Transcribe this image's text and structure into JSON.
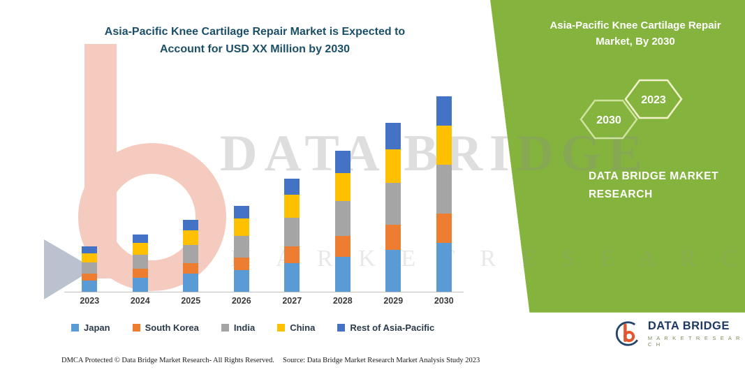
{
  "title": {
    "line1": "Asia-Pacific Knee Cartilage Repair Market is Expected to",
    "line2": "Account for USD XX Million by 2030"
  },
  "side_panel": {
    "heading": "Asia-Pacific Knee Cartilage Repair Market, By 2030",
    "hexagons": [
      {
        "label": "2030"
      },
      {
        "label": "2023"
      }
    ],
    "brand_line1": "DATA BRIDGE MARKET",
    "brand_line2": "RESEARCH",
    "bg_color": "#85B43E"
  },
  "watermark": {
    "line1": "DATA BRIDGE",
    "line2": "M A R K E T   R E S E A R C H"
  },
  "chart_data": {
    "type": "bar",
    "stacked": true,
    "title": "Asia-Pacific Knee Cartilage Repair Market is Expected to Account for USD XX Million by 2030",
    "xlabel": "",
    "ylabel": "",
    "value_note": "USD XX Million (exact values not shown; series values estimated from bar heights, relative units)",
    "grid": false,
    "legend_position": "bottom",
    "categories": [
      "2023",
      "2024",
      "2025",
      "2026",
      "2027",
      "2028",
      "2029",
      "2030"
    ],
    "series": [
      {
        "name": "Japan",
        "color": "#5B9BD5",
        "values": [
          16,
          20,
          26,
          31,
          41,
          50,
          60,
          70
        ]
      },
      {
        "name": "South Korea",
        "color": "#ED7D31",
        "values": [
          10,
          13,
          15,
          18,
          24,
          30,
          36,
          42
        ]
      },
      {
        "name": "India",
        "color": "#A5A5A5",
        "values": [
          16,
          20,
          26,
          31,
          41,
          50,
          60,
          70
        ]
      },
      {
        "name": "China",
        "color": "#FFC000",
        "values": [
          13,
          17,
          21,
          25,
          33,
          40,
          48,
          56
        ]
      },
      {
        "name": "Rest of Asia-Pacific",
        "color": "#4472C4",
        "values": [
          10,
          12,
          15,
          18,
          23,
          32,
          38,
          42
        ]
      }
    ],
    "totals": [
      65,
      82,
      103,
      123,
      162,
      202,
      242,
      280
    ]
  },
  "footer": {
    "dmca": "DMCA Protected © Data Bridge Market Research-  All Rights Reserved.",
    "source": "Source: Data Bridge Market Research  Market Analysis Study 2023"
  },
  "logo": {
    "name": "DATA BRIDGE",
    "tagline": "M A R K E T   R E S E A R C H"
  }
}
